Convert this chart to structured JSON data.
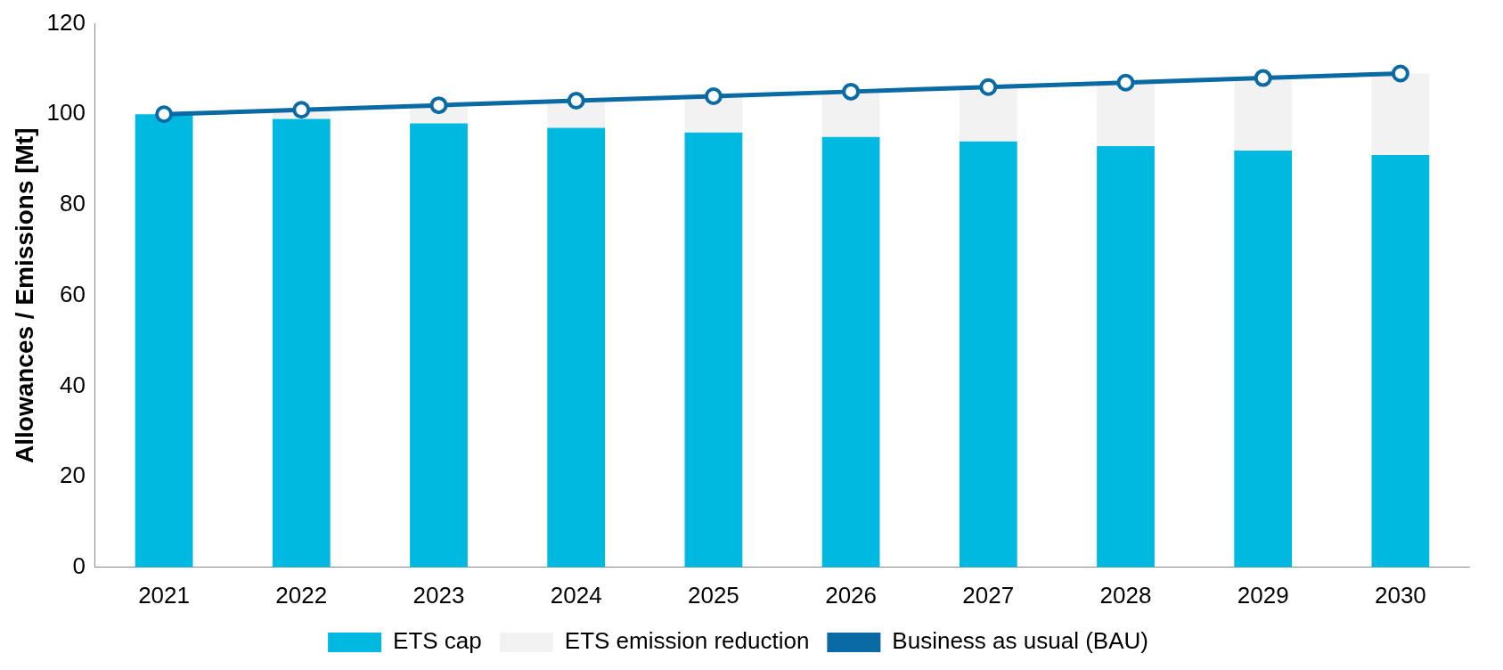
{
  "chart_data": {
    "type": "bar",
    "stacked": true,
    "ylabel": "Allowances / Emissions [Mt]",
    "categories": [
      "2021",
      "2022",
      "2023",
      "2024",
      "2025",
      "2026",
      "2027",
      "2028",
      "2029",
      "2030"
    ],
    "series": [
      {
        "name": "ETS cap",
        "color": "#00b9e0",
        "values": [
          100,
          99,
          98,
          97,
          96,
          95,
          94,
          93,
          92,
          91
        ]
      },
      {
        "name": "ETS emission reduction",
        "color": "#f2f2f2",
        "values": [
          0,
          2,
          4,
          6,
          8,
          10,
          12,
          14,
          16,
          18
        ]
      },
      {
        "name": "Business as usual (BAU)",
        "type": "line",
        "color": "#0a6aa3",
        "marker": "circle",
        "values": [
          100,
          101,
          102,
          103,
          104,
          105,
          106,
          107,
          108,
          109
        ]
      }
    ],
    "ylim": [
      0,
      120
    ],
    "yticks": [
      0,
      20,
      40,
      60,
      80,
      100,
      120
    ],
    "grid": false,
    "legend": "bottom"
  }
}
